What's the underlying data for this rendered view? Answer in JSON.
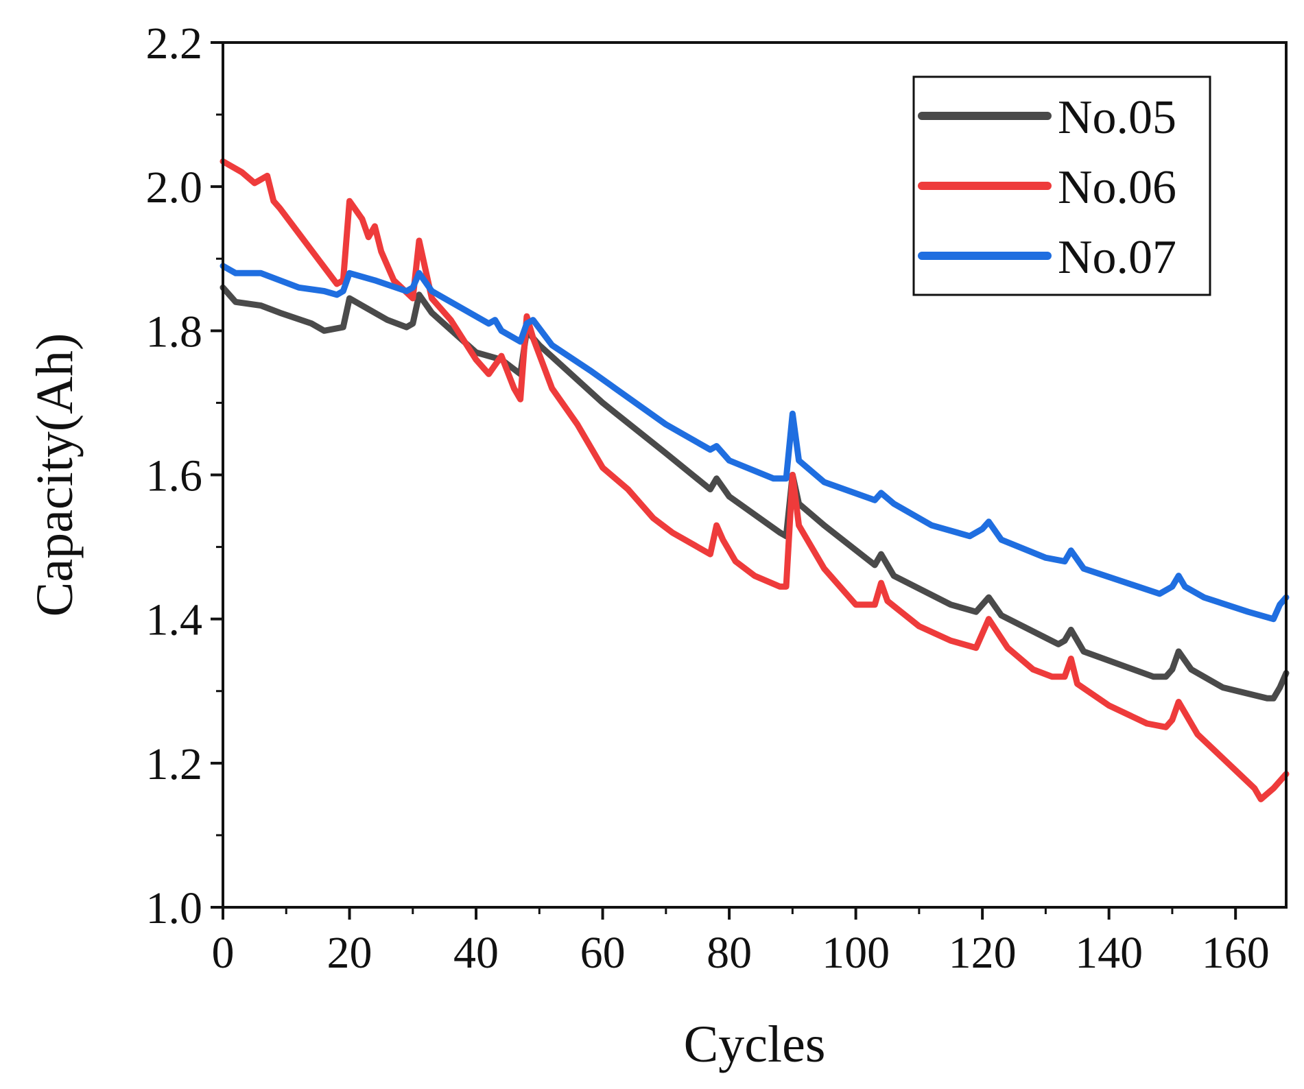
{
  "chart_data": {
    "type": "line",
    "title": "",
    "xlabel": "Cycles",
    "ylabel": "Capacity(Ah)",
    "xlim": [
      0,
      168
    ],
    "ylim": [
      1.0,
      2.2
    ],
    "xticks": [
      0,
      20,
      40,
      60,
      80,
      100,
      120,
      140,
      160
    ],
    "xtick_labels": [
      "0",
      "20",
      "40",
      "60",
      "80",
      "100",
      "120",
      "140",
      "160"
    ],
    "yticks": [
      1.0,
      1.2,
      1.4,
      1.6,
      1.8,
      2.0,
      2.2
    ],
    "ytick_labels": [
      "1.0",
      "1.2",
      "1.4",
      "1.6",
      "1.8",
      "2.0",
      "2.2"
    ],
    "grid": false,
    "legend_position": "top-right",
    "series": [
      {
        "name": "No.05",
        "color": "#4a4a4a",
        "x": [
          0,
          2,
          6,
          9,
          14,
          16,
          19,
          20,
          22,
          26,
          29,
          30,
          31,
          33,
          40,
          44,
          47,
          48,
          50,
          60,
          70,
          77,
          78,
          80,
          88,
          89,
          90,
          91,
          95,
          103,
          104,
          106,
          115,
          119,
          120,
          121,
          123,
          132,
          133,
          134,
          136,
          147,
          149,
          150,
          151,
          153,
          158,
          165,
          166,
          167,
          168
        ],
        "y": [
          1.86,
          1.84,
          1.835,
          1.825,
          1.81,
          1.8,
          1.805,
          1.845,
          1.835,
          1.815,
          1.805,
          1.81,
          1.85,
          1.825,
          1.77,
          1.76,
          1.74,
          1.8,
          1.78,
          1.7,
          1.63,
          1.58,
          1.595,
          1.57,
          1.52,
          1.515,
          1.6,
          1.56,
          1.53,
          1.475,
          1.49,
          1.46,
          1.42,
          1.41,
          1.42,
          1.43,
          1.405,
          1.365,
          1.37,
          1.385,
          1.355,
          1.32,
          1.32,
          1.33,
          1.355,
          1.33,
          1.305,
          1.29,
          1.29,
          1.305,
          1.325
        ]
      },
      {
        "name": "No.06",
        "color": "#ee3b3b",
        "x": [
          0,
          3,
          5,
          6,
          7,
          8,
          9,
          12,
          15,
          18,
          19,
          20,
          22,
          23,
          24,
          25,
          27,
          30,
          31,
          33,
          36,
          40,
          42,
          44,
          46,
          47,
          48,
          49,
          52,
          56,
          60,
          64,
          68,
          71,
          75,
          77,
          78,
          79,
          81,
          84,
          88,
          89,
          90,
          91,
          95,
          100,
          103,
          104,
          105,
          110,
          115,
          119,
          121,
          124,
          128,
          131,
          133,
          134,
          135,
          140,
          146,
          149,
          150,
          151,
          154,
          160,
          163,
          164,
          166,
          168
        ],
        "y": [
          2.035,
          2.02,
          2.005,
          2.01,
          2.015,
          1.98,
          1.97,
          1.935,
          1.9,
          1.865,
          1.87,
          1.98,
          1.955,
          1.93,
          1.945,
          1.91,
          1.87,
          1.845,
          1.925,
          1.845,
          1.815,
          1.76,
          1.74,
          1.765,
          1.72,
          1.705,
          1.82,
          1.79,
          1.72,
          1.67,
          1.61,
          1.58,
          1.54,
          1.52,
          1.5,
          1.49,
          1.53,
          1.51,
          1.48,
          1.46,
          1.445,
          1.445,
          1.6,
          1.53,
          1.47,
          1.42,
          1.42,
          1.45,
          1.425,
          1.39,
          1.37,
          1.36,
          1.4,
          1.36,
          1.33,
          1.32,
          1.32,
          1.345,
          1.31,
          1.28,
          1.255,
          1.25,
          1.26,
          1.285,
          1.24,
          1.19,
          1.165,
          1.15,
          1.165,
          1.185
        ]
      },
      {
        "name": "No.07",
        "color": "#1f6ee0",
        "x": [
          0,
          2,
          6,
          9,
          12,
          16,
          18,
          19,
          20,
          24,
          29,
          30,
          31,
          33,
          38,
          42,
          43,
          44,
          47,
          48,
          49,
          52,
          58,
          62,
          70,
          77,
          78,
          80,
          87,
          89,
          90,
          91,
          95,
          103,
          104,
          106,
          112,
          118,
          120,
          121,
          123,
          130,
          133,
          134,
          136,
          148,
          150,
          151,
          152,
          155,
          162,
          166,
          167,
          168
        ],
        "y": [
          1.89,
          1.88,
          1.88,
          1.87,
          1.86,
          1.855,
          1.85,
          1.855,
          1.88,
          1.87,
          1.855,
          1.86,
          1.88,
          1.855,
          1.83,
          1.81,
          1.815,
          1.8,
          1.785,
          1.81,
          1.815,
          1.78,
          1.745,
          1.72,
          1.67,
          1.635,
          1.64,
          1.62,
          1.595,
          1.595,
          1.685,
          1.62,
          1.59,
          1.565,
          1.575,
          1.56,
          1.53,
          1.515,
          1.525,
          1.535,
          1.51,
          1.485,
          1.48,
          1.495,
          1.47,
          1.435,
          1.445,
          1.46,
          1.445,
          1.43,
          1.41,
          1.4,
          1.42,
          1.43
        ]
      }
    ]
  }
}
